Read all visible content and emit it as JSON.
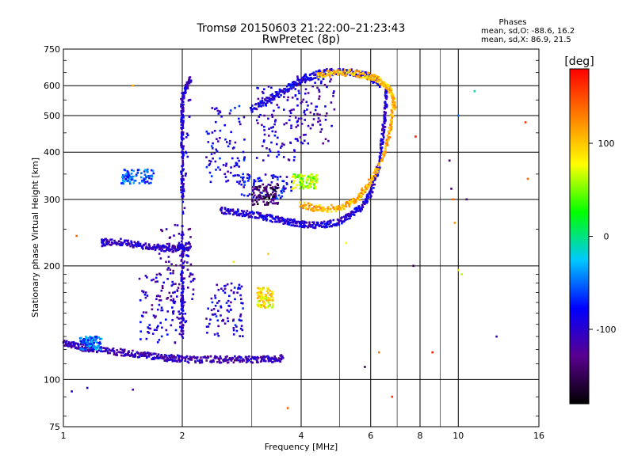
{
  "chart_data": {
    "type": "scatter",
    "title": "Tromsø 20150603 21:22:00–21:23:43",
    "subtitle": "RwPretec (8p)",
    "xlabel": "Frequency [MHz]",
    "ylabel": "Stationary phase Virtual Height [km]",
    "x_scale": "log",
    "y_scale": "log",
    "xlim": [
      1,
      16
    ],
    "ylim": [
      75,
      750
    ],
    "x_ticks": [
      1,
      2,
      4,
      6,
      8,
      10,
      16
    ],
    "y_ticks": [
      75,
      100,
      200,
      300,
      400,
      500,
      600,
      750
    ],
    "grid": true,
    "stats": {
      "heading": "Phases",
      "line_o": "mean, sd,O: -88.6, 16.2",
      "line_x": "mean, sd,X:  86.9, 21.5"
    },
    "colorbar": {
      "label": "[deg]",
      "min": -180,
      "max": 180,
      "ticks": [
        100,
        0,
        -100
      ],
      "colors": [
        "#000000",
        "#5a0090",
        "#0000ff",
        "#00c8ff",
        "#00ff00",
        "#ffff00",
        "#ff8000",
        "#ff0000"
      ]
    },
    "traces": [
      {
        "name": "",
        "phase": -110,
        "points": [
          [
            1.0,
            125
          ],
          [
            1.05,
            124
          ],
          [
            1.1,
            122
          ],
          [
            1.15,
            121
          ],
          [
            1.2,
            120
          ],
          [
            1.3,
            119
          ],
          [
            1.4,
            118
          ],
          [
            1.5,
            117
          ],
          [
            1.6,
            116
          ],
          [
            1.7,
            115
          ],
          [
            1.8,
            114
          ],
          [
            1.9,
            114
          ],
          [
            2.0,
            113
          ],
          [
            2.2,
            113
          ],
          [
            2.4,
            113
          ],
          [
            2.6,
            113
          ],
          [
            2.8,
            113
          ],
          [
            3.0,
            113
          ],
          [
            3.2,
            113
          ],
          [
            3.4,
            113
          ],
          [
            3.6,
            114
          ]
        ]
      },
      {
        "name": "",
        "phase": -105,
        "points": [
          [
            1.25,
            230
          ],
          [
            1.3,
            232
          ],
          [
            1.4,
            231
          ],
          [
            1.5,
            228
          ],
          [
            1.6,
            226
          ],
          [
            1.7,
            224
          ],
          [
            1.8,
            222
          ],
          [
            1.9,
            222
          ],
          [
            2.0,
            223
          ],
          [
            2.1,
            225
          ]
        ]
      },
      {
        "name": "",
        "phase": -95,
        "points": [
          [
            2.5,
            280
          ],
          [
            2.7,
            278
          ],
          [
            2.9,
            275
          ],
          [
            3.1,
            272
          ],
          [
            3.3,
            268
          ],
          [
            3.5,
            265
          ],
          [
            3.7,
            262
          ],
          [
            3.9,
            259
          ],
          [
            4.1,
            257
          ],
          [
            4.4,
            256
          ],
          [
            4.7,
            258
          ],
          [
            5.0,
            262
          ],
          [
            5.3,
            270
          ],
          [
            5.6,
            282
          ],
          [
            5.9,
            300
          ],
          [
            6.1,
            330
          ],
          [
            6.3,
            370
          ],
          [
            6.4,
            420
          ],
          [
            6.5,
            480
          ],
          [
            6.55,
            540
          ],
          [
            6.6,
            600
          ]
        ]
      },
      {
        "name": "",
        "phase": 110,
        "points": [
          [
            4.0,
            290
          ],
          [
            4.3,
            285
          ],
          [
            4.6,
            283
          ],
          [
            5.0,
            285
          ],
          [
            5.3,
            292
          ],
          [
            5.6,
            305
          ],
          [
            5.9,
            325
          ],
          [
            6.2,
            355
          ],
          [
            6.5,
            400
          ],
          [
            6.7,
            450
          ],
          [
            6.8,
            500
          ],
          [
            6.85,
            560
          ]
        ]
      },
      {
        "name": "",
        "phase": -100,
        "points": [
          [
            2.0,
            300
          ],
          [
            2.0,
            350
          ],
          [
            2.0,
            400
          ],
          [
            2.0,
            450
          ],
          [
            2.0,
            500
          ],
          [
            2.0,
            550
          ],
          [
            2.05,
            600
          ],
          [
            2.1,
            620
          ],
          [
            2.0,
            250
          ],
          [
            2.0,
            200
          ],
          [
            2.0,
            170
          ],
          [
            2.0,
            150
          ],
          [
            2.0,
            130
          ]
        ]
      },
      {
        "name": "",
        "phase": -90,
        "points": [
          [
            3.0,
            520
          ],
          [
            3.2,
            540
          ],
          [
            3.4,
            560
          ],
          [
            3.6,
            580
          ],
          [
            3.8,
            600
          ],
          [
            4.0,
            620
          ],
          [
            4.3,
            640
          ],
          [
            4.6,
            650
          ],
          [
            5.0,
            655
          ],
          [
            5.4,
            650
          ],
          [
            5.8,
            640
          ],
          [
            6.1,
            625
          ],
          [
            6.4,
            605
          ]
        ]
      },
      {
        "name": "",
        "phase": 105,
        "points": [
          [
            4.4,
            640
          ],
          [
            4.8,
            648
          ],
          [
            5.2,
            650
          ],
          [
            5.6,
            645
          ],
          [
            6.0,
            635
          ],
          [
            6.3,
            620
          ],
          [
            6.6,
            600
          ],
          [
            6.8,
            570
          ],
          [
            6.9,
            520
          ]
        ]
      }
    ],
    "clusters": [
      {
        "name": "",
        "phase": -100,
        "x": [
          1.55,
          2.05
        ],
        "y": [
          125,
          190
        ]
      },
      {
        "name": "",
        "phase": -110,
        "x": [
          1.75,
          2.15
        ],
        "y": [
          160,
          260
        ]
      },
      {
        "name": "",
        "phase": -95,
        "x": [
          2.3,
          2.85
        ],
        "y": [
          130,
          180
        ]
      },
      {
        "name": "",
        "phase": -90,
        "x": [
          2.3,
          2.9
        ],
        "y": [
          330,
          530
        ]
      },
      {
        "name": "",
        "phase": -100,
        "x": [
          3.05,
          3.9
        ],
        "y": [
          380,
          600
        ]
      },
      {
        "name": "",
        "phase": -105,
        "x": [
          3.9,
          4.9
        ],
        "y": [
          420,
          650
        ]
      },
      {
        "name": "",
        "phase": -80,
        "x": [
          2.8,
          3.8
        ],
        "y": [
          300,
          350
        ]
      },
      {
        "name": "",
        "phase": -60,
        "x": [
          1.4,
          1.7
        ],
        "y": [
          330,
          360
        ]
      },
      {
        "name": "",
        "phase": -50,
        "x": [
          1.1,
          1.25
        ],
        "y": [
          120,
          130
        ]
      },
      {
        "name": "",
        "phase": 85,
        "x": [
          3.1,
          3.4
        ],
        "y": [
          155,
          175
        ]
      },
      {
        "name": "",
        "phase": 60,
        "x": [
          3.8,
          4.4
        ],
        "y": [
          320,
          350
        ]
      },
      {
        "name": "",
        "phase": -150,
        "x": [
          3.0,
          3.5
        ],
        "y": [
          290,
          330
        ]
      }
    ],
    "scatter_points": [
      {
        "x": 9.5,
        "y": 380,
        "phase": -150
      },
      {
        "x": 9.6,
        "y": 320,
        "phase": -140
      },
      {
        "x": 9.7,
        "y": 300,
        "phase": 140
      },
      {
        "x": 9.8,
        "y": 260,
        "phase": 120
      },
      {
        "x": 10.0,
        "y": 195,
        "phase": 90
      },
      {
        "x": 10.2,
        "y": 190,
        "phase": 60
      },
      {
        "x": 10.5,
        "y": 300,
        "phase": -140
      },
      {
        "x": 11.0,
        "y": 580,
        "phase": -10
      },
      {
        "x": 10.0,
        "y": 500,
        "phase": -50
      },
      {
        "x": 12.5,
        "y": 130,
        "phase": -110
      },
      {
        "x": 14.8,
        "y": 480,
        "phase": 160
      },
      {
        "x": 15.0,
        "y": 340,
        "phase": 140
      },
      {
        "x": 7.8,
        "y": 440,
        "phase": 170
      },
      {
        "x": 7.7,
        "y": 200,
        "phase": -150
      },
      {
        "x": 8.6,
        "y": 118,
        "phase": 170
      },
      {
        "x": 6.3,
        "y": 118,
        "phase": 130
      },
      {
        "x": 6.8,
        "y": 90,
        "phase": 160
      },
      {
        "x": 5.8,
        "y": 108,
        "phase": -150
      },
      {
        "x": 5.2,
        "y": 230,
        "phase": 80
      },
      {
        "x": 3.7,
        "y": 84,
        "phase": 140
      },
      {
        "x": 1.15,
        "y": 95,
        "phase": -100
      },
      {
        "x": 1.05,
        "y": 93,
        "phase": -90
      },
      {
        "x": 1.5,
        "y": 94,
        "phase": -120
      },
      {
        "x": 1.5,
        "y": 600,
        "phase": 110
      },
      {
        "x": 1.08,
        "y": 240,
        "phase": 140
      },
      {
        "x": 2.7,
        "y": 205,
        "phase": 90
      },
      {
        "x": 3.3,
        "y": 215,
        "phase": 100
      }
    ]
  }
}
